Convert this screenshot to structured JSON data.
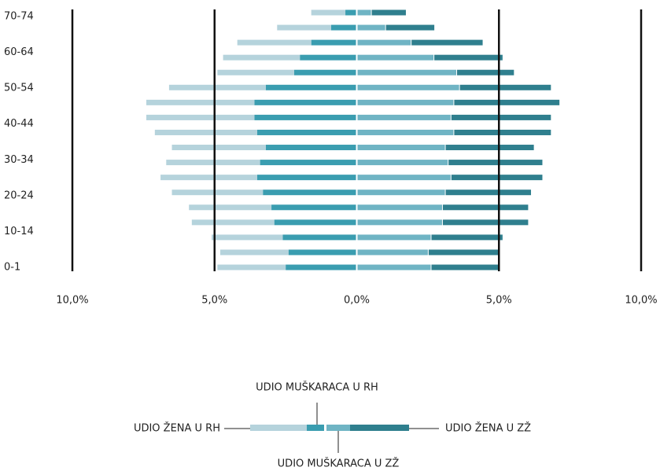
{
  "chart_data": {
    "type": "pyramid",
    "y_labels": [
      "0-1",
      "10-14",
      "20-24",
      "30-34",
      "40-44",
      "50-54",
      "60-64",
      "70-74"
    ],
    "xlim": [
      -10,
      10
    ],
    "xticks": [
      {
        "value": -10,
        "label": "10,0%"
      },
      {
        "value": -5,
        "label": "5,0%"
      },
      {
        "value": 0,
        "label": "0,0%"
      },
      {
        "value": 5,
        "label": "5,0%"
      },
      {
        "value": 10,
        "label": "10,0%"
      }
    ],
    "grid": true,
    "series": [
      {
        "name": "UDIO MUŠKARACA U RH",
        "side": "left",
        "color": "#3a9db0",
        "values": [
          2.5,
          2.4,
          2.6,
          2.9,
          3.0,
          3.3,
          3.5,
          3.4,
          3.2,
          3.5,
          3.6,
          3.6,
          3.2,
          2.2,
          2.0,
          1.6,
          0.9,
          0.4
        ]
      },
      {
        "name": "UDIO ŽENA U RH",
        "side": "left",
        "color": "#b5d3dc",
        "values": [
          2.4,
          2.4,
          2.5,
          2.9,
          2.9,
          3.2,
          3.4,
          3.3,
          3.3,
          3.6,
          3.8,
          3.8,
          3.4,
          2.7,
          2.7,
          2.6,
          1.9,
          1.2
        ]
      },
      {
        "name": "UDIO MUŠKARACA U ZŽ",
        "side": "right",
        "color": "#6fb4c4",
        "values": [
          2.6,
          2.5,
          2.6,
          3.0,
          3.0,
          3.1,
          3.3,
          3.2,
          3.1,
          3.4,
          3.3,
          3.4,
          3.6,
          3.5,
          2.7,
          1.9,
          1.0,
          0.5
        ]
      },
      {
        "name": "UDIO ŽENA U ZŽ",
        "side": "right",
        "color": "#2f7f8e",
        "values": [
          2.4,
          2.5,
          2.5,
          3.0,
          3.0,
          3.0,
          3.2,
          3.3,
          3.1,
          3.4,
          3.5,
          3.7,
          3.2,
          2.0,
          2.4,
          2.5,
          1.7,
          1.2
        ]
      }
    ]
  }
}
